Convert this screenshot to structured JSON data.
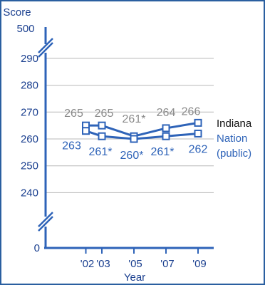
{
  "chart_data": {
    "type": "line",
    "title": "",
    "ylabel": "Score",
    "xlabel": "Year",
    "ylim": [
      235,
      295
    ],
    "y_axis_top_break_label": "500",
    "y_axis_bottom_label": "0",
    "y_ticks": [
      240,
      250,
      260,
      270,
      280,
      290
    ],
    "categories": [
      "'02",
      "'03",
      "'05",
      "'07",
      "'09"
    ],
    "x_years": [
      2002,
      2003,
      2005,
      2007,
      2009
    ],
    "grid": true,
    "series": [
      {
        "name": "Indiana",
        "color": "#2e63b8",
        "values": [
          265,
          265,
          261,
          264,
          266
        ],
        "labels": [
          "265",
          "265",
          "261*",
          "264",
          "266"
        ]
      },
      {
        "name": "Nation (public)",
        "color": "#2e63b8",
        "values": [
          263,
          261,
          260,
          261,
          262
        ],
        "labels": [
          "263",
          "261*",
          "260*",
          "261*",
          "262"
        ]
      }
    ],
    "legend": {
      "placement": "right",
      "entries": [
        "Indiana",
        "Nation",
        "(public)"
      ]
    }
  }
}
